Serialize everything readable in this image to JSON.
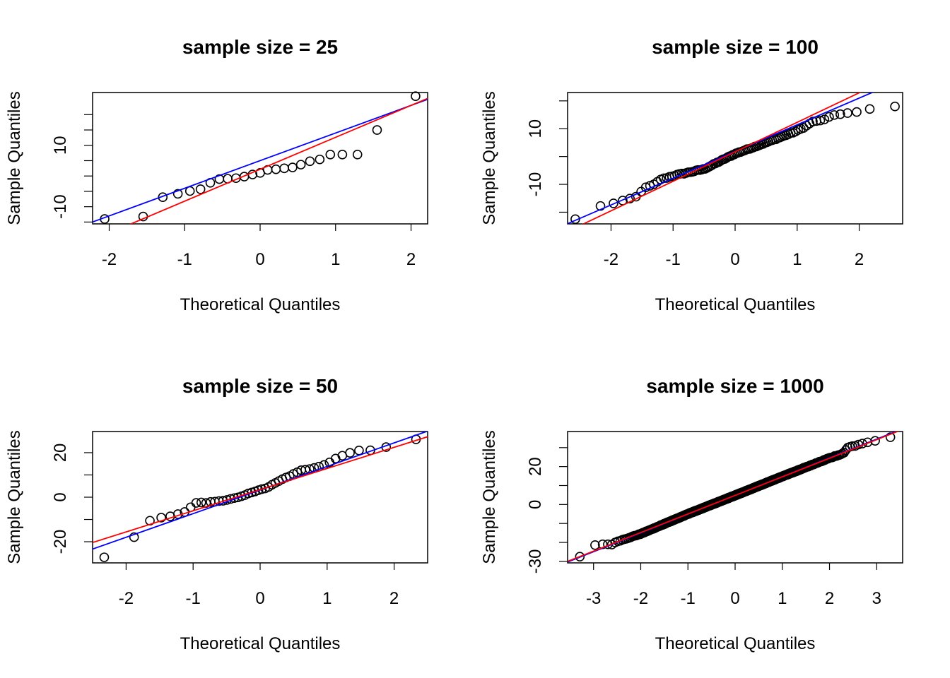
{
  "figure": {
    "background": "#ffffff"
  },
  "panels": [
    {
      "title": "sample size =  25",
      "xlabel": "Theoretical Quantiles",
      "ylabel": "Sample Quantiles",
      "xlim": [
        -2.22,
        2.22
      ],
      "ylim": [
        -15.6,
        27.2
      ],
      "xticks": [
        -2,
        -1,
        0,
        1,
        2
      ],
      "yticks": [
        -15,
        -10,
        -5,
        0,
        5,
        10,
        15,
        20
      ],
      "ytick_labels": [
        {
          "value": -10,
          "label": "-10"
        },
        {
          "value": 10,
          "label": "10"
        }
      ]
    },
    {
      "title": "sample size =  100",
      "xlabel": "Theoretical Quantiles",
      "ylabel": "Sample Quantiles",
      "xlim": [
        -2.7,
        2.7
      ],
      "ylim": [
        -24.2,
        23.0
      ],
      "xticks": [
        -2,
        -1,
        0,
        1,
        2
      ],
      "yticks": [
        -20,
        -10,
        0,
        10,
        20
      ],
      "ytick_labels": [
        {
          "value": -10,
          "label": "-10"
        },
        {
          "value": 10,
          "label": "10"
        }
      ]
    },
    {
      "title": "sample size =  50",
      "xlabel": "Theoretical Quantiles",
      "ylabel": "Sample Quantiles",
      "xlim": [
        -2.5,
        2.5
      ],
      "ylim": [
        -29.5,
        29.5
      ],
      "xticks": [
        -2,
        -1,
        0,
        1,
        2
      ],
      "yticks": [
        -30,
        -20,
        -10,
        0,
        10,
        20
      ],
      "ytick_labels": [
        {
          "value": -20,
          "label": "-20"
        },
        {
          "value": 0,
          "label": "0"
        },
        {
          "value": 20,
          "label": "20"
        }
      ]
    },
    {
      "title": "sample size =  1000",
      "xlabel": "Theoretical Quantiles",
      "ylabel": "Sample Quantiles",
      "xlim": [
        -3.55,
        3.55
      ],
      "ylim": [
        -30.8,
        38.5
      ],
      "xticks": [
        -3,
        -2,
        -1,
        0,
        1,
        2,
        3
      ],
      "yticks": [
        -30,
        -20,
        -10,
        0,
        10,
        20,
        30
      ],
      "ytick_labels": [
        {
          "value": -30,
          "label": "-30"
        },
        {
          "value": 0,
          "label": "0"
        },
        {
          "value": 20,
          "label": "20"
        }
      ]
    }
  ],
  "chart_data": [
    {
      "type": "scatter",
      "title": "sample size =  25",
      "xlabel": "Theoretical Quantiles",
      "ylabel": "Sample Quantiles",
      "x": [
        -2.06,
        -1.55,
        -1.29,
        -1.09,
        -0.93,
        -0.79,
        -0.66,
        -0.54,
        -0.43,
        -0.32,
        -0.21,
        -0.1,
        0.0,
        0.1,
        0.21,
        0.32,
        0.43,
        0.54,
        0.66,
        0.79,
        0.93,
        1.09,
        1.29,
        1.55,
        2.06
      ],
      "values": [
        -14.0,
        -13.2,
        -6.9,
        -5.8,
        -4.9,
        -4.3,
        -2.2,
        -1.0,
        -0.9,
        -0.7,
        -0.2,
        0.5,
        1.0,
        2.0,
        2.2,
        2.5,
        2.8,
        3.7,
        4.8,
        5.4,
        7.0,
        7.0,
        7.0,
        15.0,
        26.0
      ],
      "lines": [
        {
          "name": "blue line",
          "color": "#0000ff",
          "intercept": 5.0,
          "slope": 9.0
        },
        {
          "name": "red line",
          "color": "#ff0000",
          "intercept": 2.2,
          "slope": 10.4
        }
      ]
    },
    {
      "type": "scatter",
      "title": "sample size =  100",
      "xlabel": "Theoretical Quantiles",
      "ylabel": "Sample Quantiles",
      "generated": {
        "n": 100,
        "points": [
          [
            -2.58,
            -22.5
          ],
          [
            -2.2,
            -17.8
          ],
          [
            -2.0,
            -17.1
          ],
          [
            -1.85,
            -16.2
          ],
          [
            -1.75,
            -15.6
          ],
          [
            -1.65,
            -14.8
          ],
          [
            -1.55,
            -14.2
          ],
          [
            -1.5,
            -11.8
          ],
          [
            -1.4,
            -10.8
          ],
          [
            -1.3,
            -10.0
          ],
          [
            -1.2,
            -8.2
          ],
          [
            -1.1,
            -7.6
          ],
          [
            -1.0,
            -6.9
          ],
          [
            -0.5,
            -4.5
          ],
          [
            0.0,
            1.0
          ],
          [
            0.5,
            5.0
          ],
          [
            1.0,
            9.2
          ],
          [
            1.15,
            11.0
          ],
          [
            1.25,
            12.6
          ],
          [
            1.35,
            12.7
          ],
          [
            1.45,
            13.5
          ],
          [
            1.55,
            14.5
          ],
          [
            1.65,
            15.0
          ],
          [
            1.85,
            15.9
          ],
          [
            2.0,
            16.0
          ],
          [
            2.2,
            17.2
          ],
          [
            2.58,
            18.0
          ]
        ]
      },
      "lines": [
        {
          "name": "blue line",
          "color": "#0000ff",
          "intercept": 1.8,
          "slope": 9.6
        },
        {
          "name": "red line",
          "color": "#ff0000",
          "intercept": 1.7,
          "slope": 10.6
        }
      ]
    },
    {
      "type": "scatter",
      "title": "sample size =  50",
      "xlabel": "Theoretical Quantiles",
      "ylabel": "Sample Quantiles",
      "generated": {
        "n": 50,
        "points": [
          [
            -2.33,
            -27.0
          ],
          [
            -1.88,
            -18.0
          ],
          [
            -1.66,
            -10.5
          ],
          [
            -1.5,
            -9.5
          ],
          [
            -1.35,
            -8.5
          ],
          [
            -1.2,
            -7.3
          ],
          [
            -1.06,
            -6.0
          ],
          [
            -1.0,
            -2.5
          ],
          [
            -0.8,
            -2.5
          ],
          [
            -0.5,
            -1.2
          ],
          [
            -0.3,
            0.0
          ],
          [
            -0.1,
            2.5
          ],
          [
            0.0,
            3.5
          ],
          [
            0.1,
            4.0
          ],
          [
            0.2,
            6.0
          ],
          [
            0.4,
            9.0
          ],
          [
            0.6,
            12.0
          ],
          [
            0.8,
            13.0
          ],
          [
            1.0,
            15.0
          ],
          [
            1.1,
            17.0
          ],
          [
            1.2,
            18.5
          ],
          [
            1.35,
            20.0
          ],
          [
            1.5,
            21.0
          ],
          [
            1.66,
            21.0
          ],
          [
            1.88,
            22.5
          ],
          [
            2.33,
            26.0
          ]
        ]
      },
      "lines": [
        {
          "name": "blue line",
          "color": "#0000ff",
          "intercept": 3.2,
          "slope": 10.6
        },
        {
          "name": "red line",
          "color": "#ff0000",
          "intercept": 3.4,
          "slope": 9.5
        }
      ]
    },
    {
      "type": "scatter",
      "title": "sample size =  1000",
      "xlabel": "Theoretical Quantiles",
      "ylabel": "Sample Quantiles",
      "generated": {
        "n": 1000,
        "points": [
          [
            -3.29,
            -27.5
          ],
          [
            -2.95,
            -21.0
          ],
          [
            -2.8,
            -21.0
          ],
          [
            -2.7,
            -21.0
          ],
          [
            -2.6,
            -21.0
          ],
          [
            -2.5,
            -19.5
          ],
          [
            -2.0,
            -15.5
          ],
          [
            -1.0,
            -5.0
          ],
          [
            0.0,
            4.8
          ],
          [
            1.0,
            14.8
          ],
          [
            2.0,
            24.5
          ],
          [
            2.3,
            27.0
          ],
          [
            2.4,
            30.5
          ],
          [
            2.55,
            31.0
          ],
          [
            2.7,
            32.0
          ],
          [
            2.85,
            33.0
          ],
          [
            3.05,
            34.0
          ],
          [
            3.29,
            35.5
          ]
        ]
      },
      "lines": [
        {
          "name": "blue line",
          "color": "#0000ff",
          "intercept": 4.8,
          "slope": 9.9
        },
        {
          "name": "red line",
          "color": "#ff0000",
          "intercept": 4.8,
          "slope": 9.8
        }
      ]
    }
  ]
}
